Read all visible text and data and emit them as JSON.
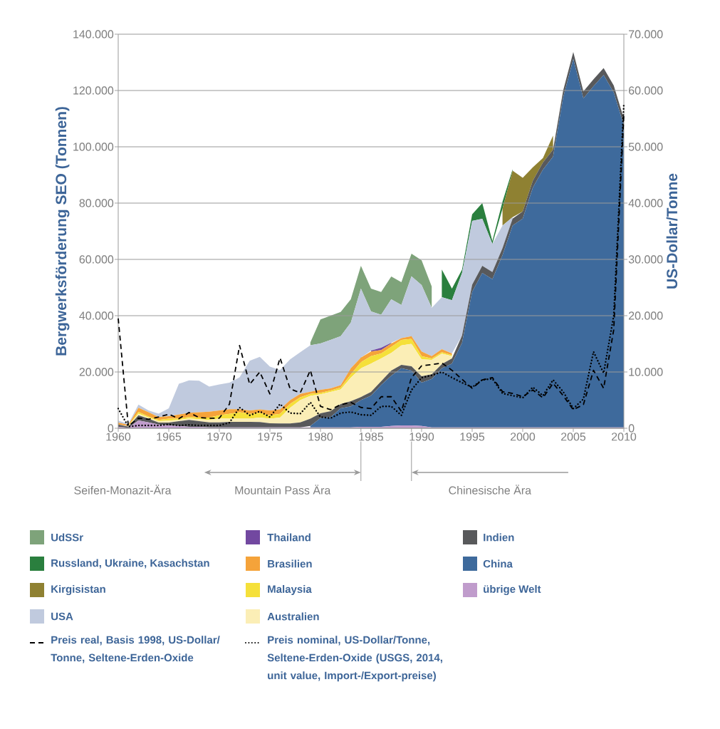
{
  "chart_data": {
    "type": "area",
    "stacked": true,
    "grid": "y",
    "legend": "bottom",
    "ylabel": "Bergwerksförderung SEO (Tonnen)",
    "y2label": "US-Dollar/Tonne",
    "xlim": [
      1960,
      2010
    ],
    "xticks": [
      1960,
      1965,
      1970,
      1975,
      1980,
      1985,
      1990,
      1995,
      2000,
      2005,
      2010
    ],
    "ylim": [
      0,
      140000
    ],
    "yticks": [
      0,
      {
        "value": 20000,
        "label": "20.000"
      },
      {
        "value": 40000,
        "label": "40.000"
      },
      {
        "value": 60000,
        "label": "60.000"
      },
      {
        "value": 80000,
        "label": "80.000"
      },
      {
        "value": 100000,
        "label": "100.000"
      },
      {
        "value": 120000,
        "label": "120.000"
      },
      {
        "value": 140000,
        "label": "140.000"
      }
    ],
    "y2lim": [
      0,
      70000
    ],
    "y2ticks": [
      0,
      {
        "value": 10000,
        "label": "10.000"
      },
      {
        "value": 20000,
        "label": "20.000"
      },
      {
        "value": 30000,
        "label": "30.000"
      },
      {
        "value": 40000,
        "label": "40.000"
      },
      {
        "value": 50000,
        "label": "50.000"
      },
      {
        "value": 60000,
        "label": "60.000"
      },
      {
        "value": 70000,
        "label": "70.000"
      }
    ],
    "x": [
      1960,
      1961,
      1962,
      1963,
      1964,
      1965,
      1966,
      1967,
      1968,
      1969,
      1970,
      1971,
      1972,
      1973,
      1974,
      1975,
      1976,
      1977,
      1978,
      1979,
      1980,
      1981,
      1982,
      1983,
      1984,
      1985,
      1986,
      1987,
      1988,
      1989,
      1990,
      1991,
      1992,
      1993,
      1994,
      1995,
      1996,
      1997,
      1998,
      1999,
      2000,
      2001,
      2002,
      2003,
      2004,
      2005,
      2006,
      2007,
      2008,
      2009,
      2010
    ],
    "series": [
      {
        "name": "übrige Welt",
        "color": "#c09ccc",
        "values": [
          500,
          200,
          2800,
          2100,
          1300,
          1000,
          800,
          500,
          500,
          300,
          300,
          300,
          300,
          300,
          300,
          300,
          300,
          300,
          300,
          300,
          300,
          300,
          300,
          300,
          500,
          500,
          500,
          800,
          1000,
          1000,
          800,
          300,
          300,
          300,
          300,
          300,
          300,
          300,
          300,
          300,
          300,
          300,
          300,
          300,
          300,
          300,
          300,
          300,
          300,
          300,
          300
        ]
      },
      {
        "name": "China",
        "color": "#3e6a9c",
        "values": [
          null,
          null,
          null,
          null,
          null,
          null,
          null,
          null,
          null,
          null,
          null,
          null,
          null,
          null,
          null,
          null,
          null,
          null,
          null,
          500,
          3300,
          3700,
          6800,
          7500,
          9500,
          11100,
          14900,
          17900,
          20300,
          19500,
          15400,
          17200,
          21000,
          22700,
          30100,
          48200,
          54900,
          52700,
          61200,
          71700,
          74200,
          85200,
          91600,
          96200,
          117200,
          130900,
          116900,
          121200,
          125200,
          119000,
          107200
        ]
      },
      {
        "name": "Indien",
        "color": "#58595b",
        "values": [
          800,
          400,
          1800,
          1300,
          700,
          1000,
          1700,
          2500,
          2000,
          1800,
          1800,
          2000,
          2000,
          2000,
          1900,
          1500,
          1400,
          1400,
          1800,
          2600,
          1700,
          2100,
          1500,
          1800,
          1100,
          1300,
          1300,
          1800,
          1200,
          1500,
          2300,
          1700,
          1500,
          1800,
          2600,
          2500,
          2500,
          2500,
          2500,
          2500,
          2500,
          2500,
          2500,
          2500,
          2500,
          2500,
          2500,
          2500,
          2500,
          2500,
          2500
        ]
      },
      {
        "name": "Australien",
        "color": "#fbeeb6",
        "values": [
          null,
          100,
          600,
          400,
          500,
          700,
          500,
          500,
          700,
          900,
          1400,
          1100,
          1100,
          1100,
          1600,
          1600,
          2100,
          5600,
          7900,
          8100,
          6800,
          6800,
          5200,
          8400,
          10200,
          10100,
          8100,
          6300,
          6900,
          8000,
          6000,
          5100,
          3700,
          800,
          null,
          null,
          null,
          null,
          null,
          null,
          null,
          null,
          null,
          null,
          null,
          null,
          null,
          null,
          null,
          null,
          null
        ]
      },
      {
        "name": "Malaysia",
        "color": "#f5e03a",
        "values": [
          null,
          100,
          600,
          400,
          500,
          700,
          500,
          500,
          600,
          800,
          1100,
          1700,
          2300,
          1700,
          1700,
          1200,
          1300,
          1400,
          1000,
          700,
          500,
          500,
          700,
          1200,
          2200,
          2600,
          1800,
          2100,
          2000,
          1800,
          1100,
          500,
          500,
          400,
          null,
          null,
          null,
          null,
          null,
          null,
          null,
          null,
          null,
          null,
          null,
          null,
          null,
          null,
          null,
          null,
          null
        ]
      },
      {
        "name": "Brasilien",
        "color": "#f5a33a",
        "values": [
          700,
          400,
          1500,
          1500,
          1000,
          900,
          1400,
          1500,
          1900,
          2100,
          1700,
          1700,
          1100,
          1200,
          1200,
          1700,
          1600,
          1300,
          1200,
          800,
          1100,
          800,
          800,
          2100,
          1600,
          1700,
          1200,
          1200,
          600,
          900,
          1700,
          800,
          1100,
          600,
          null,
          null,
          null,
          null,
          null,
          null,
          null,
          null,
          null,
          null,
          null,
          null,
          null,
          null,
          null,
          null,
          null
        ]
      },
      {
        "name": "Thailand",
        "color": "#7248a0",
        "values": [
          null,
          null,
          null,
          null,
          null,
          null,
          null,
          null,
          null,
          null,
          null,
          null,
          null,
          null,
          null,
          null,
          null,
          null,
          null,
          null,
          null,
          null,
          null,
          null,
          null,
          300,
          800,
          300,
          null,
          null,
          null,
          null,
          null,
          null,
          null,
          null,
          null,
          null,
          null,
          null,
          null,
          null,
          null,
          null,
          null,
          null,
          null,
          null,
          null,
          null,
          null
        ]
      },
      {
        "name": "USA",
        "color": "#c0cade",
        "values": [
          700,
          300,
          1100,
          600,
          1200,
          2800,
          10900,
          11500,
          11200,
          8900,
          9300,
          9400,
          11300,
          17700,
          18700,
          15600,
          14000,
          14500,
          14800,
          16500,
          16400,
          17200,
          17400,
          16200,
          24500,
          13900,
          11700,
          15400,
          11800,
          21300,
          23600,
          17200,
          18500,
          18900,
          22200,
          22700,
          16700,
          10000,
          8000,
          500,
          null,
          null,
          null,
          null,
          null,
          null,
          null,
          null,
          null,
          null,
          null
        ]
      },
      {
        "name": "Kirgisistan",
        "color": "#8f8132",
        "values": [
          null,
          null,
          null,
          null,
          null,
          null,
          null,
          null,
          null,
          null,
          null,
          null,
          null,
          null,
          null,
          null,
          null,
          null,
          null,
          null,
          null,
          null,
          null,
          null,
          null,
          null,
          null,
          null,
          null,
          null,
          null,
          null,
          null,
          null,
          null,
          null,
          null,
          null,
          6000,
          16500,
          12000,
          4700,
          1600,
          5000,
          null,
          null,
          null,
          null,
          null,
          null,
          null
        ]
      },
      {
        "name": "Russland, Ukraine, Kasachstan",
        "color": "#2a7f3e",
        "values": [
          null,
          null,
          null,
          null,
          null,
          null,
          null,
          null,
          null,
          null,
          null,
          null,
          null,
          null,
          null,
          null,
          null,
          null,
          null,
          null,
          null,
          null,
          null,
          null,
          null,
          null,
          null,
          null,
          null,
          null,
          null,
          null,
          9800,
          4100,
          1200,
          2300,
          5600,
          1000,
          2500,
          500,
          null,
          null,
          null,
          null,
          null,
          null,
          null,
          null,
          null,
          null,
          null
        ]
      },
      {
        "name": "UdSSr",
        "color": "#7ea37a",
        "values": [
          null,
          null,
          null,
          null,
          null,
          null,
          null,
          null,
          null,
          null,
          null,
          null,
          null,
          null,
          null,
          null,
          null,
          null,
          null,
          1000,
          8600,
          8600,
          8600,
          8300,
          8100,
          8100,
          8100,
          8100,
          8100,
          8000,
          8800,
          7600,
          null,
          null,
          null,
          null,
          null,
          null,
          null,
          null,
          null,
          null,
          null,
          null,
          null,
          null,
          null,
          null,
          null,
          null,
          null
        ]
      },
      {
        "name": "Preis real, Basis 1998, US-Dollar/ Tonne, Seltene-Erden-Oxide",
        "type": "line",
        "axis": "y2",
        "line_style": "dashed",
        "color": "#000000",
        "values": [
          19500,
          400,
          1800,
          1600,
          2000,
          2500,
          1700,
          2800,
          1900,
          1800,
          1800,
          4300,
          14700,
          7800,
          10000,
          6100,
          12500,
          7000,
          6300,
          10300,
          3900,
          3300,
          4200,
          4600,
          3700,
          3500,
          5600,
          5600,
          3000,
          9000,
          11100,
          11300,
          11600,
          10300,
          8700,
          7100,
          8600,
          9000,
          6500,
          6200,
          5600,
          6800,
          5400,
          8000,
          5800,
          3300,
          4200,
          10300,
          7100,
          17500,
          55800
        ]
      },
      {
        "name": "Preis nominal, US-Dollar/Tonne, Seltene-Erden-Oxide (USGS, 2014, unit value, Import-/Export-preise)",
        "type": "line",
        "axis": "y2",
        "line_style": "dotted",
        "color": "#000000",
        "values": [
          3500,
          300,
          500,
          500,
          500,
          700,
          500,
          600,
          500,
          500,
          500,
          1000,
          3700,
          2300,
          3000,
          2000,
          4300,
          2700,
          2600,
          4600,
          2000,
          1800,
          2700,
          2900,
          2400,
          2300,
          3900,
          3900,
          2300,
          6800,
          9000,
          9400,
          10000,
          9000,
          8100,
          7300,
          8600,
          8800,
          6200,
          5800,
          5400,
          7300,
          5800,
          8600,
          6500,
          3500,
          5200,
          13600,
          9800,
          20000,
          57700
        ]
      }
    ],
    "ref_lines": [
      {
        "axis": "x",
        "value": 1984
      },
      {
        "axis": "x",
        "value": 1989
      }
    ],
    "annotations": [
      "Seifen-Monazit-Ära",
      "Mountain Pass Ära",
      "Chinesische Ära"
    ]
  }
}
